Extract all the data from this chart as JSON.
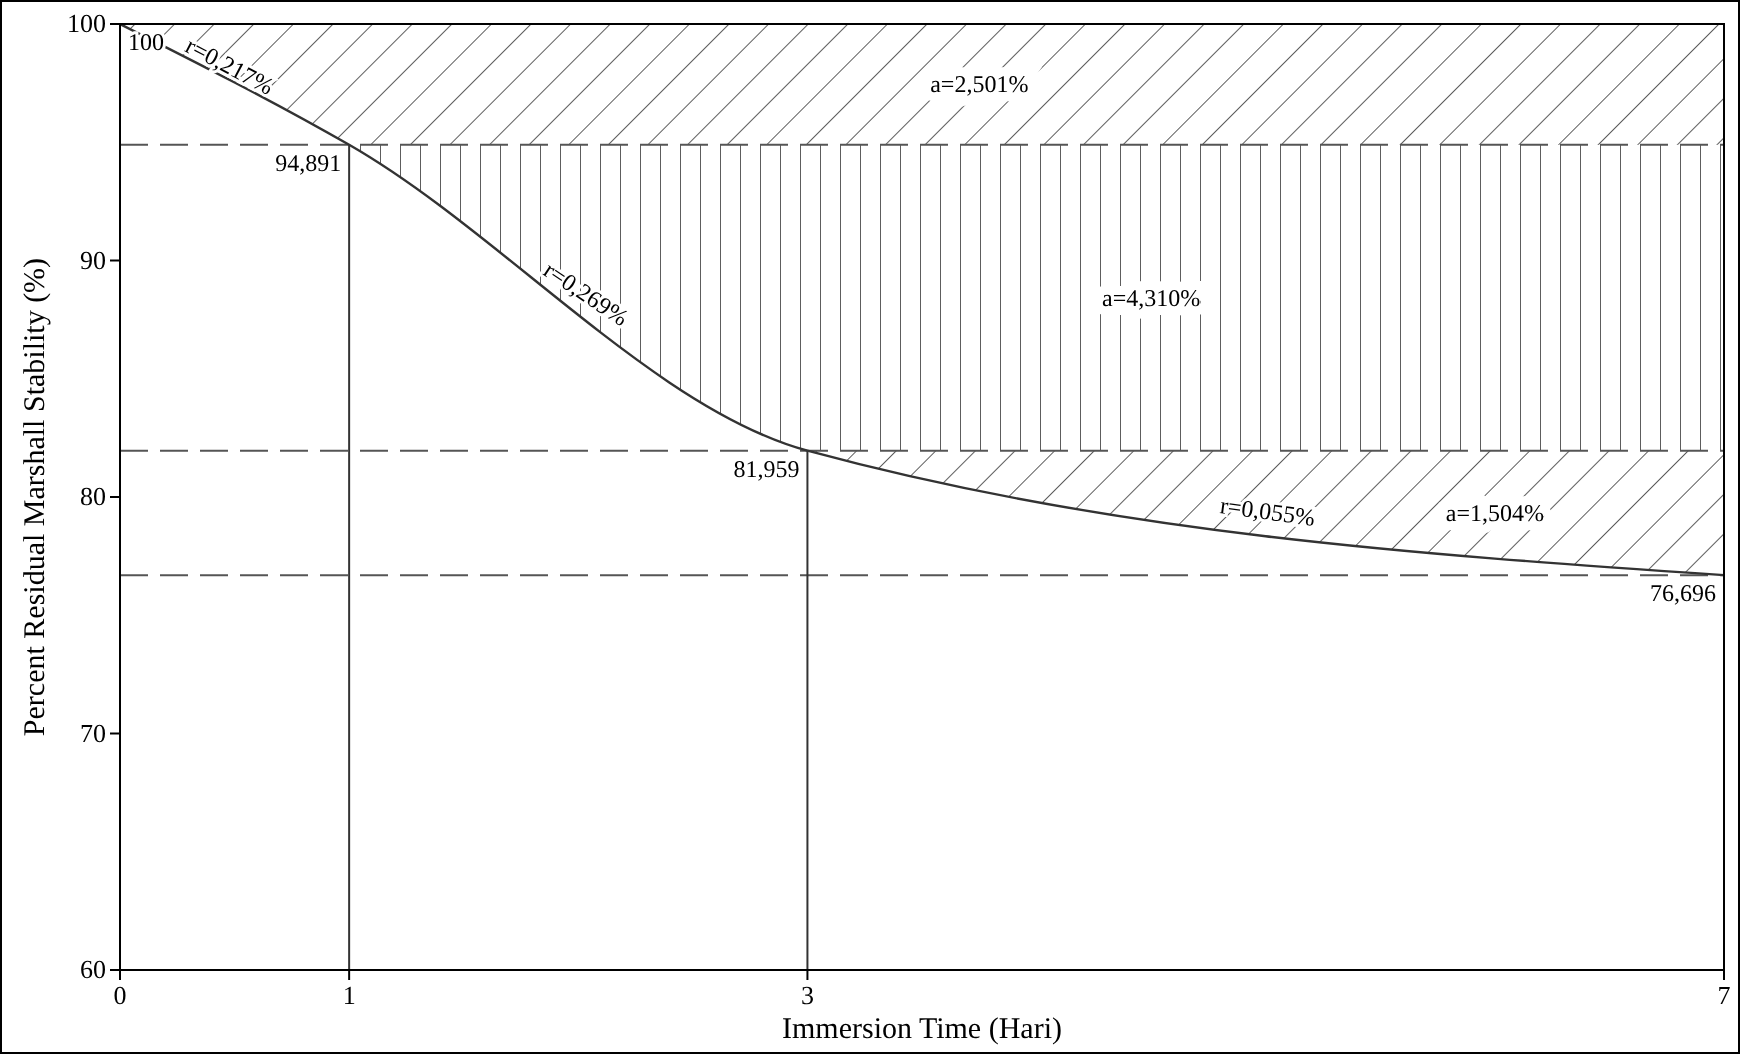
{
  "chart_data": {
    "type": "line",
    "xlabel": "Immersion Time (Hari)",
    "ylabel": "Percent Residual Marshall Stability (%)",
    "x": [
      0,
      1,
      3,
      7
    ],
    "series": [
      {
        "color": "#333333",
        "values": [
          100,
          94.891,
          81.959,
          76.696
        ],
        "value_labels": [
          "100",
          "94,891",
          "81,959",
          "76,696"
        ]
      }
    ],
    "xlim": [
      0,
      7
    ],
    "xticks": [
      0,
      1,
      3,
      7
    ],
    "ylim": [
      60,
      100
    ],
    "yticks": [
      60,
      70,
      80,
      90,
      100
    ],
    "line_style": "solid",
    "ref_lines": [
      {
        "axis": "y",
        "value": 94.891,
        "line_style": "dashed"
      },
      {
        "axis": "y",
        "value": 81.959,
        "line_style": "dashed"
      },
      {
        "axis": "y",
        "value": 76.696,
        "line_style": "dashed"
      },
      {
        "axis": "x",
        "value": 1,
        "line_style": "solid"
      },
      {
        "axis": "x",
        "value": 3,
        "line_style": "solid"
      }
    ],
    "bands": [
      {
        "axis": "y",
        "from": 94.891,
        "to": 100,
        "label": "a=2,501%"
      },
      {
        "axis": "y",
        "from": 81.959,
        "to": 94.891,
        "label": "a=4,310%"
      },
      {
        "axis": "y",
        "from": 76.696,
        "to": 81.959,
        "label": "a=1,504%"
      }
    ],
    "annotations": [
      {
        "text": "r=0,217%",
        "x": 0.45,
        "y": 97.7
      },
      {
        "text": "r=0,269%",
        "x": 2,
        "y": 88.1
      },
      {
        "text": "r=0,055%",
        "x": 5,
        "y": 78.8
      }
    ]
  }
}
